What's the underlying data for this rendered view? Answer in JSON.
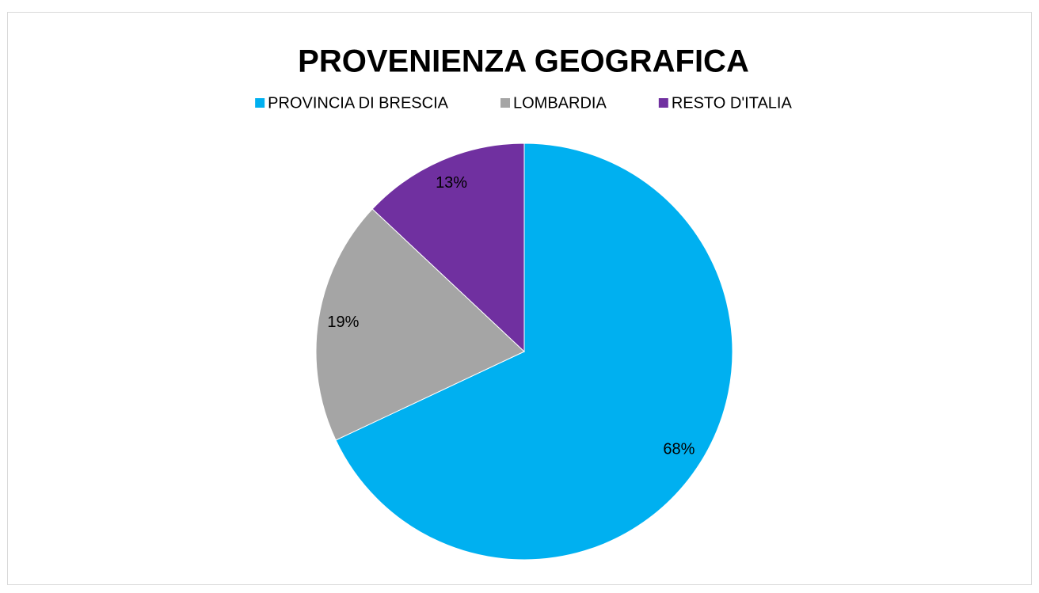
{
  "chart_data": {
    "type": "pie",
    "title": "PROVENIENZA GEOGRAFICA",
    "categories": [
      "PROVINCIA DI BRESCIA",
      "LOMBARDIA",
      "RESTO D'ITALIA"
    ],
    "values": [
      68,
      19,
      13
    ],
    "value_labels": [
      "68%",
      "19%",
      "13%"
    ],
    "colors": [
      "#00b0f0",
      "#a5a5a5",
      "#7030a0"
    ],
    "legend": "top"
  }
}
